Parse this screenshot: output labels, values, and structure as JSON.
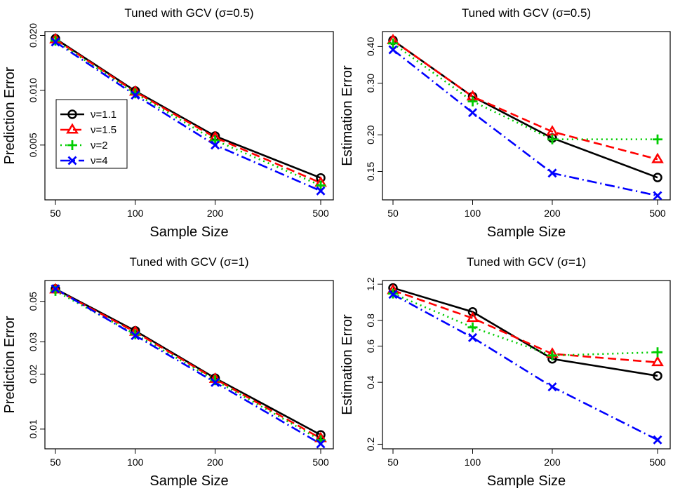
{
  "chart_data": [
    {
      "type": "line",
      "title": "Tuned with GCV (σ=0.5)",
      "xlabel": "Sample Size",
      "ylabel": "Prediction Error",
      "x": [
        50,
        100,
        200,
        500
      ],
      "x_ticks": [
        50,
        100,
        200,
        500
      ],
      "x_scale": "log",
      "y_scale": "log",
      "ylim": [
        0.0025,
        0.021
      ],
      "y_ticks": [
        0.005,
        0.01,
        0.02
      ],
      "y_tick_labels": [
        "0.005",
        "0.010",
        "0.020"
      ],
      "grid": false,
      "legend": "center-left",
      "series": [
        {
          "name": "ν=1.1",
          "values": [
            0.0192,
            0.0099,
            0.0056,
            0.0033
          ]
        },
        {
          "name": "ν=1.5",
          "values": [
            0.019,
            0.0098,
            0.0055,
            0.0031
          ]
        },
        {
          "name": "ν=2",
          "values": [
            0.0187,
            0.0096,
            0.0053,
            0.003
          ]
        },
        {
          "name": "ν=4",
          "values": [
            0.0184,
            0.0094,
            0.005,
            0.0028
          ]
        }
      ]
    },
    {
      "type": "line",
      "title": "Tuned with GCV (σ=0.5)",
      "xlabel": "Sample Size",
      "ylabel": "Estimation Error",
      "x": [
        50,
        100,
        200,
        500
      ],
      "x_ticks": [
        50,
        100,
        200,
        500
      ],
      "x_scale": "log",
      "y_scale": "log",
      "ylim": [
        0.12,
        0.45
      ],
      "y_ticks": [
        0.15,
        0.2,
        0.3,
        0.4
      ],
      "y_tick_labels": [
        "0.15",
        "0.20",
        "0.30",
        "0.40"
      ],
      "grid": false,
      "series": [
        {
          "name": "ν=1.1",
          "values": [
            0.42,
            0.27,
            0.195,
            0.143
          ]
        },
        {
          "name": "ν=1.5",
          "values": [
            0.42,
            0.27,
            0.205,
            0.165
          ]
        },
        {
          "name": "ν=2",
          "values": [
            0.41,
            0.26,
            0.193,
            0.193
          ]
        },
        {
          "name": "ν=4",
          "values": [
            0.39,
            0.238,
            0.148,
            0.124
          ]
        }
      ]
    },
    {
      "type": "line",
      "title": "Tuned with GCV (σ=1)",
      "xlabel": "Sample Size",
      "ylabel": "Prediction Error",
      "x": [
        50,
        100,
        200,
        500
      ],
      "x_ticks": [
        50,
        100,
        200,
        500
      ],
      "x_scale": "log",
      "y_scale": "log",
      "ylim": [
        0.0078,
        0.065
      ],
      "y_ticks": [
        0.01,
        0.02,
        0.03,
        0.05
      ],
      "y_tick_labels": [
        "0.01",
        "0.02",
        "0.03",
        "0.05"
      ],
      "grid": false,
      "series": [
        {
          "name": "ν=1.1",
          "values": [
            0.0585,
            0.0345,
            0.019,
            0.0093
          ]
        },
        {
          "name": "ν=1.5",
          "values": [
            0.058,
            0.034,
            0.0188,
            0.0089
          ]
        },
        {
          "name": "ν=2",
          "values": [
            0.057,
            0.033,
            0.0185,
            0.0087
          ]
        },
        {
          "name": "ν=4",
          "values": [
            0.0585,
            0.0325,
            0.018,
            0.0083
          ]
        }
      ]
    },
    {
      "type": "line",
      "title": "Tuned with GCV (σ=1)",
      "xlabel": "Sample Size",
      "ylabel": "Estimation Error",
      "x": [
        50,
        100,
        200,
        500
      ],
      "x_ticks": [
        50,
        100,
        200,
        500
      ],
      "x_scale": "log",
      "y_scale": "log",
      "ylim": [
        0.19,
        1.25
      ],
      "y_ticks": [
        0.2,
        0.4,
        0.6,
        0.8,
        1.2
      ],
      "y_tick_labels": [
        "0.2",
        "0.4",
        "0.6",
        "0.8",
        "1.2"
      ],
      "grid": false,
      "series": [
        {
          "name": "ν=1.1",
          "values": [
            1.15,
            0.88,
            0.52,
            0.43
          ]
        },
        {
          "name": "ν=1.5",
          "values": [
            1.12,
            0.82,
            0.55,
            0.5
          ]
        },
        {
          "name": "ν=2",
          "values": [
            1.08,
            0.74,
            0.54,
            0.56
          ]
        },
        {
          "name": "ν=4",
          "values": [
            1.07,
            0.66,
            0.38,
            0.21
          ]
        }
      ]
    }
  ],
  "series_styles": [
    {
      "color": "#000000",
      "dash": "",
      "marker": "circle"
    },
    {
      "color": "#ff0000",
      "dash": "12,6",
      "marker": "triangle"
    },
    {
      "color": "#00cd00",
      "dash": "2,5",
      "marker": "plus"
    },
    {
      "color": "#0000ff",
      "dash": "14,5,2,5",
      "marker": "cross"
    }
  ]
}
